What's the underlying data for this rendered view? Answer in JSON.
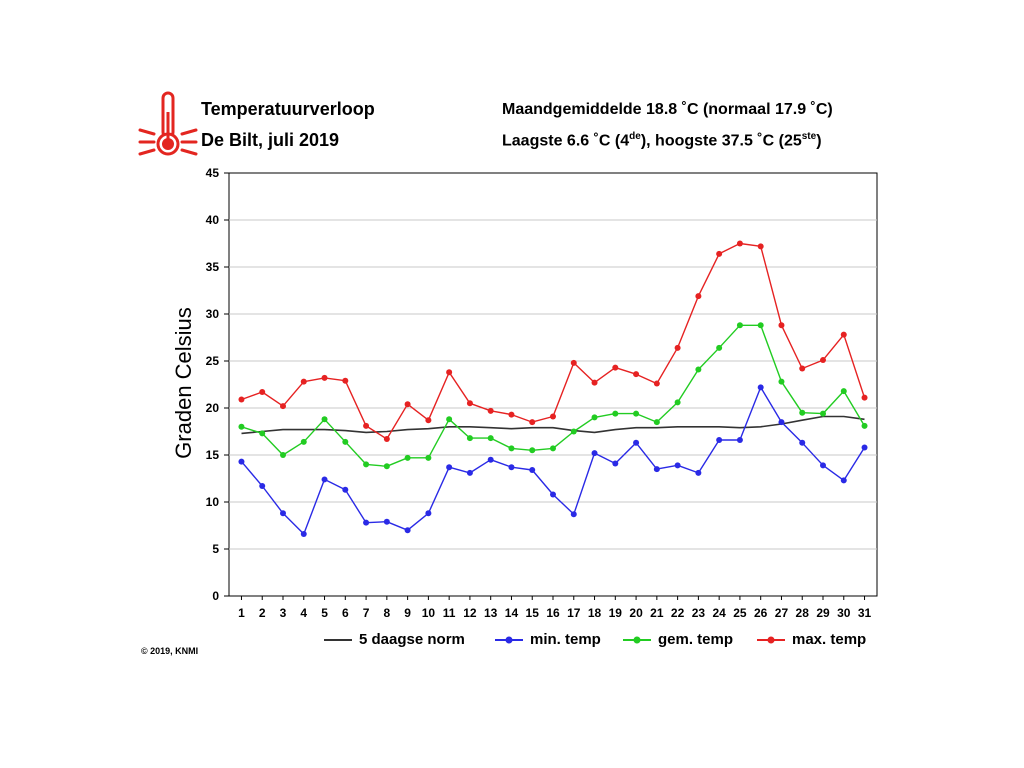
{
  "header": {
    "title_line1": "Temperatuurverloop",
    "title_line2": "De Bilt, juli 2019",
    "stats_line1": "Maandgemiddelde 18.8 ˚C (normaal 17.9 ˚C)",
    "stats_line2_pre": "Laagste 6.6 ˚C (4",
    "stats_line2_sup1": "de",
    "stats_line2_mid": "), hoogste 37.5 ˚C (25",
    "stats_line2_sup2": "ste",
    "stats_line2_post": ")"
  },
  "icon": {
    "name": "thermometer-icon",
    "color": "#e32620"
  },
  "copyright": "© 2019, KNMI",
  "colors": {
    "norm": "#333333",
    "min": "#2a2ae6",
    "gem": "#22cc22",
    "max": "#e62222",
    "grid": "#c8c8c8"
  },
  "chart_data": {
    "type": "line",
    "title": "Temperatuurverloop",
    "ylabel": "Graden Celsius",
    "xlabel": "",
    "ylim": [
      0,
      45
    ],
    "yticks": [
      0,
      5,
      10,
      15,
      20,
      25,
      30,
      35,
      40,
      45
    ],
    "x": [
      1,
      2,
      3,
      4,
      5,
      6,
      7,
      8,
      9,
      10,
      11,
      12,
      13,
      14,
      15,
      16,
      17,
      18,
      19,
      20,
      21,
      22,
      23,
      24,
      25,
      26,
      27,
      28,
      29,
      30,
      31
    ],
    "grid": true,
    "legend_position": "bottom",
    "series": [
      {
        "name": "5 daagse norm",
        "key": "norm",
        "markers": false,
        "values": [
          17.3,
          17.5,
          17.7,
          17.7,
          17.7,
          17.6,
          17.4,
          17.5,
          17.7,
          17.8,
          18.0,
          18.0,
          17.9,
          17.8,
          17.9,
          17.9,
          17.6,
          17.4,
          17.7,
          17.9,
          17.9,
          18.0,
          18.0,
          18.0,
          17.9,
          18.0,
          18.3,
          18.7,
          19.1,
          19.1,
          18.8
        ]
      },
      {
        "name": "min. temp",
        "key": "min",
        "markers": true,
        "values": [
          14.3,
          11.7,
          8.8,
          6.6,
          12.4,
          11.3,
          7.8,
          7.9,
          7.0,
          8.8,
          13.7,
          13.1,
          14.5,
          13.7,
          13.4,
          10.8,
          8.7,
          15.2,
          14.1,
          16.3,
          13.5,
          13.9,
          13.1,
          16.6,
          16.6,
          22.2,
          18.5,
          16.3,
          13.9,
          12.3,
          15.8
        ]
      },
      {
        "name": "gem. temp",
        "key": "gem",
        "markers": true,
        "values": [
          18.0,
          17.3,
          15.0,
          16.4,
          18.8,
          16.4,
          14.0,
          13.8,
          14.7,
          14.7,
          18.8,
          16.8,
          16.8,
          15.7,
          15.5,
          15.7,
          17.5,
          19.0,
          19.4,
          19.4,
          18.5,
          20.6,
          24.1,
          26.4,
          28.8,
          28.8,
          22.8,
          19.5,
          19.4,
          21.8,
          18.1
        ]
      },
      {
        "name": "max. temp",
        "key": "max",
        "markers": true,
        "values": [
          20.9,
          21.7,
          20.2,
          22.8,
          23.2,
          22.9,
          18.1,
          16.7,
          20.4,
          18.7,
          23.8,
          20.5,
          19.7,
          19.3,
          18.5,
          19.1,
          24.8,
          22.7,
          24.3,
          23.6,
          22.6,
          26.4,
          31.9,
          36.4,
          37.5,
          37.2,
          28.8,
          24.2,
          25.1,
          27.8,
          21.1
        ]
      }
    ]
  }
}
